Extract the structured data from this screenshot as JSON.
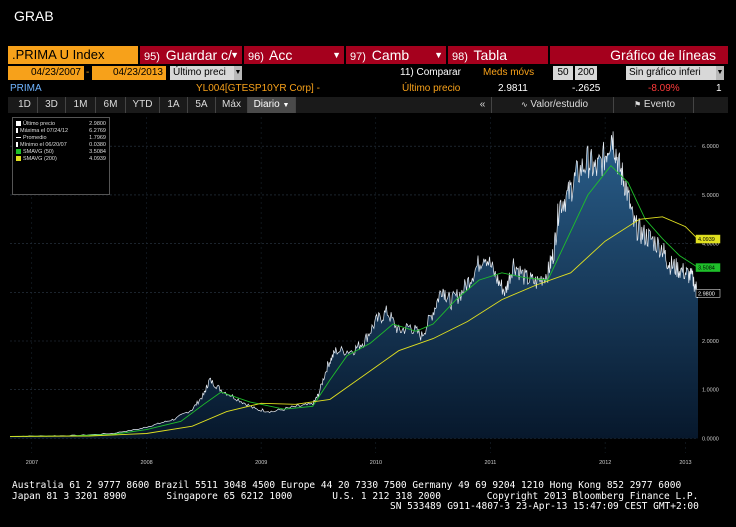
{
  "window": {
    "title": "GRAB"
  },
  "command_bar": {
    "ticker": ".PRIMA U Index",
    "buttons": [
      {
        "num": "95)",
        "label": "Guardar c/"
      },
      {
        "num": "96)",
        "label": "Acc"
      },
      {
        "num": "97)",
        "label": "Camb"
      },
      {
        "num": "98)",
        "label": "Tabla"
      }
    ],
    "chart_type": "Gráfico de líneas"
  },
  "range_row": {
    "start_date": "04/23/2007",
    "end_date": "04/23/2013",
    "price_type": "Último preci",
    "compare_label": "11) Comparar",
    "mavg_label": "Meds móvs",
    "mavg1": "50",
    "mavg2": "200",
    "lower_chart": "Sin gráfico inferi"
  },
  "info_row": {
    "name": "PRIMA",
    "security": "YL004[GTESP10YR Corp] -",
    "last_label": "Último precio",
    "last_value": "2.9811",
    "change": "-.2625",
    "change_pct": "-8.09%",
    "count": "1"
  },
  "toolbar": {
    "periods": [
      "1D",
      "3D",
      "1M",
      "6M",
      "YTD",
      "1A",
      "5A",
      "Máx"
    ],
    "frequency": "Diario",
    "collapse_icon": "«",
    "value_study": "Valor/estudio",
    "event": "Evento"
  },
  "legend": [
    {
      "label": "Último precio",
      "value": "2.9800",
      "color": "#ffffff"
    },
    {
      "label": "Máxima el 07/24/12",
      "value": "6.2769",
      "color": "#ffffff"
    },
    {
      "label": "Promedio",
      "value": "1.7969",
      "color": "#ffffff"
    },
    {
      "label": "Mínimo el 06/20/07",
      "value": "0.0380",
      "color": "#ffffff"
    },
    {
      "label": "SMAVG (50)",
      "value": "3.5084",
      "color": "#1fbf2a"
    },
    {
      "label": "SMAVG (200)",
      "value": "4.0939",
      "color": "#e0e020"
    }
  ],
  "chart_data": {
    "type": "line",
    "y_range": [
      -0.3,
      6.6
    ],
    "y_ticks": [
      "6.0000",
      "5.0000",
      "4.0000",
      "3.0000",
      "2.0000",
      "1.0000",
      "0.0000"
    ],
    "y_tick_values": [
      6,
      5,
      4,
      3,
      2,
      1,
      0
    ],
    "x_range": [
      2007.31,
      2013.31
    ],
    "x_ticks": [
      "2007",
      "2008",
      "2009",
      "2010",
      "2011",
      "2012",
      "2013"
    ],
    "x_tick_values": [
      2007.5,
      2008.5,
      2009.5,
      2010.5,
      2011.5,
      2012.5,
      2013.2
    ],
    "price_tags": [
      {
        "label": "4.0939",
        "value": 4.0939,
        "color": "#e0e020"
      },
      {
        "label": "3.5084",
        "value": 3.5084,
        "color": "#1fbf2a"
      },
      {
        "label": "2.9800",
        "value": 2.98,
        "color": "#ffffff"
      }
    ],
    "price": [
      [
        2007.31,
        0.04
      ],
      [
        2007.6,
        0.05
      ],
      [
        2007.9,
        0.06
      ],
      [
        2008.2,
        0.1
      ],
      [
        2008.45,
        0.2
      ],
      [
        2008.6,
        0.3
      ],
      [
        2008.75,
        0.4
      ],
      [
        2008.9,
        0.6
      ],
      [
        2009.0,
        0.9
      ],
      [
        2009.05,
        1.2
      ],
      [
        2009.15,
        1.0
      ],
      [
        2009.3,
        0.8
      ],
      [
        2009.45,
        0.6
      ],
      [
        2009.6,
        0.55
      ],
      [
        2009.8,
        0.65
      ],
      [
        2009.95,
        0.7
      ],
      [
        2010.0,
        0.9
      ],
      [
        2010.08,
        1.5
      ],
      [
        2010.15,
        1.8
      ],
      [
        2010.3,
        1.8
      ],
      [
        2010.4,
        2.0
      ],
      [
        2010.5,
        2.4
      ],
      [
        2010.6,
        2.6
      ],
      [
        2010.7,
        2.2
      ],
      [
        2010.8,
        2.3
      ],
      [
        2010.9,
        2.1
      ],
      [
        2011.0,
        2.6
      ],
      [
        2011.08,
        3.1
      ],
      [
        2011.15,
        2.8
      ],
      [
        2011.25,
        3.0
      ],
      [
        2011.35,
        3.4
      ],
      [
        2011.45,
        3.8
      ],
      [
        2011.55,
        3.3
      ],
      [
        2011.63,
        3.0
      ],
      [
        2011.7,
        3.6
      ],
      [
        2011.8,
        3.3
      ],
      [
        2011.9,
        3.2
      ],
      [
        2012.0,
        3.4
      ],
      [
        2012.05,
        3.8
      ],
      [
        2012.1,
        4.8
      ],
      [
        2012.18,
        5.0
      ],
      [
        2012.25,
        5.4
      ],
      [
        2012.35,
        5.7
      ],
      [
        2012.42,
        5.5
      ],
      [
        2012.5,
        5.8
      ],
      [
        2012.56,
        6.28
      ],
      [
        2012.62,
        5.6
      ],
      [
        2012.68,
        5.2
      ],
      [
        2012.75,
        4.4
      ],
      [
        2012.82,
        4.2
      ],
      [
        2012.9,
        4.1
      ],
      [
        2013.0,
        3.9
      ],
      [
        2013.05,
        3.6
      ],
      [
        2013.12,
        3.5
      ],
      [
        2013.2,
        3.4
      ],
      [
        2013.26,
        3.3
      ],
      [
        2013.31,
        2.98
      ]
    ],
    "smavg50": [
      [
        2007.31,
        0.04
      ],
      [
        2007.8,
        0.05
      ],
      [
        2008.2,
        0.08
      ],
      [
        2008.5,
        0.18
      ],
      [
        2008.8,
        0.35
      ],
      [
        2009.0,
        0.7
      ],
      [
        2009.15,
        0.95
      ],
      [
        2009.4,
        0.75
      ],
      [
        2009.7,
        0.6
      ],
      [
        2009.95,
        0.66
      ],
      [
        2010.1,
        1.2
      ],
      [
        2010.25,
        1.7
      ],
      [
        2010.45,
        1.95
      ],
      [
        2010.65,
        2.35
      ],
      [
        2010.85,
        2.2
      ],
      [
        2011.0,
        2.35
      ],
      [
        2011.2,
        2.85
      ],
      [
        2011.4,
        3.25
      ],
      [
        2011.6,
        3.4
      ],
      [
        2011.8,
        3.3
      ],
      [
        2012.0,
        3.25
      ],
      [
        2012.15,
        4.0
      ],
      [
        2012.35,
        5.0
      ],
      [
        2012.55,
        5.6
      ],
      [
        2012.7,
        5.25
      ],
      [
        2012.85,
        4.5
      ],
      [
        2013.0,
        4.1
      ],
      [
        2013.15,
        3.75
      ],
      [
        2013.31,
        3.51
      ]
    ],
    "smavg200": [
      [
        2007.31,
        0.04
      ],
      [
        2008.0,
        0.05
      ],
      [
        2008.5,
        0.1
      ],
      [
        2008.9,
        0.25
      ],
      [
        2009.2,
        0.55
      ],
      [
        2009.5,
        0.72
      ],
      [
        2009.8,
        0.7
      ],
      [
        2010.1,
        0.8
      ],
      [
        2010.4,
        1.3
      ],
      [
        2010.7,
        1.8
      ],
      [
        2011.0,
        2.05
      ],
      [
        2011.3,
        2.4
      ],
      [
        2011.6,
        2.85
      ],
      [
        2011.9,
        3.15
      ],
      [
        2012.2,
        3.4
      ],
      [
        2012.5,
        4.05
      ],
      [
        2012.8,
        4.5
      ],
      [
        2013.0,
        4.55
      ],
      [
        2013.2,
        4.35
      ],
      [
        2013.31,
        4.09
      ]
    ]
  },
  "footer": {
    "line1": "Australia 61 2 9777 8600 Brazil 5511 3048 4500 Europe 44 20 7330 7500 Germany 49 69 9204 1210 Hong Kong 852 2977 6000",
    "line2": "Japan 81 3 3201 8900       Singapore 65 6212 1000       U.S. 1 212 318 2000        Copyright 2013 Bloomberg Finance L.P.",
    "line3": "SN 533489 G911-4807-3 23-Apr-13 15:47:09 CEST GMT+2:00"
  }
}
